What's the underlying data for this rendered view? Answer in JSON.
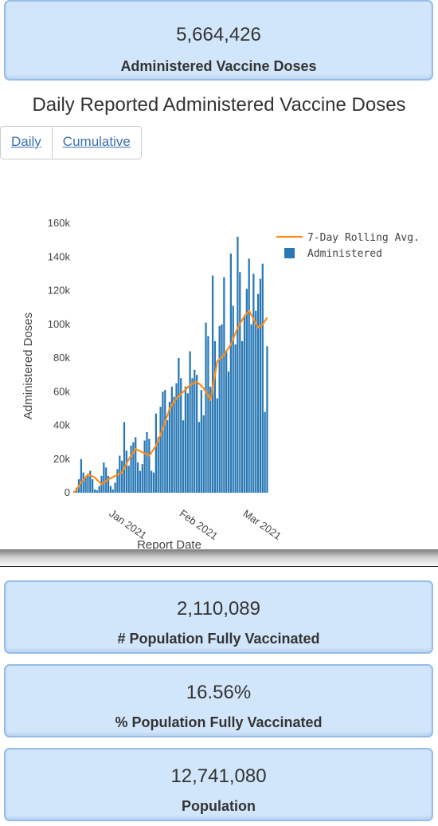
{
  "summary": {
    "doses_value": "5,664,426",
    "doses_label": "Administered Vaccine Doses"
  },
  "chart_title": "Daily Reported Administered Vaccine Doses",
  "tabs": [
    "Daily",
    "Cumulative"
  ],
  "stats": [
    {
      "value": "2,110,089",
      "label": "# Population Fully Vaccinated"
    },
    {
      "value": "16.56%",
      "label": "% Population Fully Vaccinated"
    },
    {
      "value": "12,741,080",
      "label": "Population"
    }
  ],
  "chart_data": {
    "type": "bar",
    "xlabel": "Report Date",
    "ylabel": "Administered Doses",
    "ylim": [
      0,
      160000
    ],
    "y_ticks": [
      0,
      20000,
      40000,
      60000,
      80000,
      100000,
      120000,
      140000,
      160000
    ],
    "y_tick_labels": [
      "0",
      "20k",
      "40k",
      "60k",
      "80k",
      "100k",
      "120k",
      "140k",
      "160k"
    ],
    "x_tick_labels": [
      "Jan 2021",
      "Feb 2021",
      "Mar 2021"
    ],
    "x_tick_positions": [
      16,
      47,
      75
    ],
    "legend_placement": "top-right",
    "colors": {
      "bars": "#2878b5",
      "line": "#ff8c1a"
    },
    "series": [
      {
        "name": "Administered",
        "type": "bar",
        "values": [
          1000,
          3000,
          8000,
          20000,
          12000,
          9000,
          10000,
          13000,
          8000,
          2000,
          1500,
          4000,
          10000,
          18000,
          15000,
          10000,
          4000,
          2000,
          6000,
          14000,
          22000,
          19000,
          42000,
          25000,
          16000,
          28000,
          30000,
          33000,
          18000,
          13000,
          17000,
          31000,
          36000,
          32000,
          13000,
          12000,
          47000,
          33000,
          51000,
          60000,
          61000,
          43000,
          54000,
          63000,
          57000,
          65000,
          80000,
          68000,
          43000,
          63000,
          59000,
          84000,
          68000,
          73000,
          70000,
          42000,
          61000,
          46000,
          101000,
          93000,
          63000,
          129000,
          90000,
          56000,
          99000,
          100000,
          128000,
          84000,
          72000,
          142000,
          111000,
          88000,
          152000,
          131000,
          90000,
          105000,
          121000,
          139000,
          100000,
          130000,
          108000,
          118000,
          127000,
          136000,
          48000,
          87000
        ],
        "x_start": 1
      },
      {
        "name": "7-Day Rolling Avg.",
        "type": "line",
        "x": [
          1,
          4,
          7,
          10,
          13,
          16,
          19,
          22,
          25,
          28,
          31,
          34,
          37,
          40,
          43,
          46,
          49,
          52,
          55,
          58,
          61,
          64,
          67,
          70,
          73,
          76,
          78,
          80,
          82,
          84,
          86
        ],
        "values": [
          0,
          6000,
          11000,
          9000,
          5000,
          8000,
          10000,
          12000,
          20000,
          26000,
          24000,
          22000,
          28000,
          38000,
          50000,
          56000,
          60000,
          64000,
          66000,
          62000,
          55000,
          78000,
          82000,
          88000,
          98000,
          105000,
          108000,
          103000,
          98000,
          100000,
          104000
        ]
      }
    ]
  }
}
